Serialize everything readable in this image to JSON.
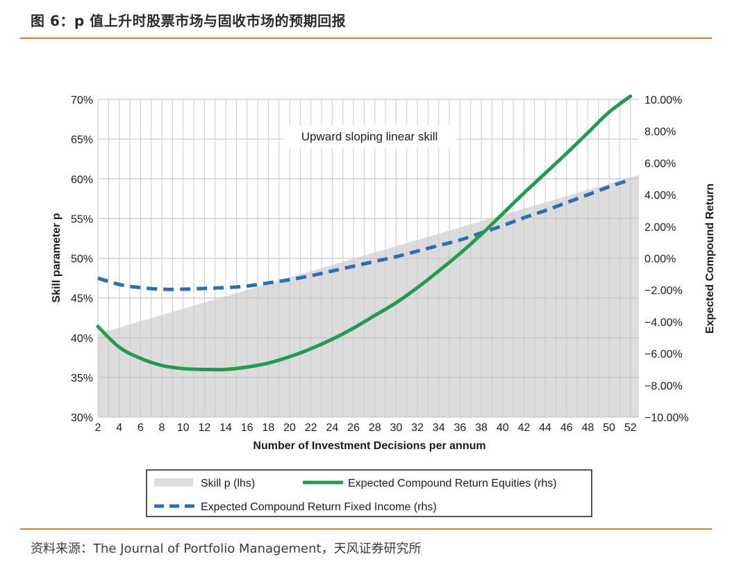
{
  "header": {
    "title": "图 6：p 值上升时股票市场与固收市场的预期回报"
  },
  "footer": {
    "source": "资料来源：The Journal of Portfolio Management，天风证券研究所"
  },
  "colors": {
    "accent": "#e87722",
    "skill_fill": "#dcdcdc",
    "equities": "#1f9d4e",
    "fixed_income": "#2a6fb5",
    "grid": "#c8c8c8"
  },
  "chart_data": {
    "type": "line",
    "annotation": "Upward sloping linear skill",
    "xlabel": "Number of Investment Decisions per annum",
    "ylabel_left": "Skill parameter p",
    "ylabel_right": "Expected Compound Return",
    "x": [
      2,
      4,
      6,
      8,
      10,
      12,
      14,
      16,
      18,
      20,
      22,
      24,
      26,
      28,
      30,
      32,
      34,
      36,
      38,
      40,
      42,
      44,
      46,
      48,
      50,
      52
    ],
    "xlim": [
      2,
      52.8
    ],
    "ylim_left": [
      0.3,
      0.7
    ],
    "ylim_right": [
      -10,
      10
    ],
    "left_ticks": [
      "30%",
      "35%",
      "40%",
      "45%",
      "50%",
      "55%",
      "60%",
      "65%",
      "70%"
    ],
    "right_ticks": [
      "−10.00%",
      "−8.00%",
      "−6.00%",
      "−4.00%",
      "−2.00%",
      "0.00%",
      "2.00%",
      "4.00%",
      "6.00%",
      "8.00%",
      "10.00%"
    ],
    "series": [
      {
        "name": "Skill p (lhs)",
        "axis": "left",
        "style": "area",
        "x": [
          2,
          52.8
        ],
        "values": [
          0.405,
          0.605
        ]
      },
      {
        "name": "Expected Compound Return Equities (rhs)",
        "axis": "right",
        "style": "solid",
        "values": [
          -4.3,
          -5.6,
          -6.3,
          -6.75,
          -6.95,
          -7.0,
          -7.0,
          -6.85,
          -6.6,
          -6.2,
          -5.7,
          -5.1,
          -4.4,
          -3.6,
          -2.8,
          -1.85,
          -0.8,
          0.3,
          1.5,
          2.8,
          4.1,
          5.35,
          6.6,
          7.9,
          9.2,
          10.2
        ]
      },
      {
        "name": "Expected Compound Return Fixed Income (rhs)",
        "axis": "right",
        "style": "dashed",
        "values": [
          -1.25,
          -1.65,
          -1.85,
          -1.95,
          -1.95,
          -1.9,
          -1.85,
          -1.75,
          -1.55,
          -1.35,
          -1.1,
          -0.8,
          -0.5,
          -0.2,
          0.1,
          0.45,
          0.8,
          1.15,
          1.6,
          2.05,
          2.55,
          3.0,
          3.5,
          4.0,
          4.5,
          4.95
        ]
      }
    ],
    "legend": {
      "skill": "Skill p (lhs)",
      "equities": "Expected Compound Return Equities (rhs)",
      "fixed_income": "Expected Compound Return Fixed Income (rhs)"
    }
  }
}
